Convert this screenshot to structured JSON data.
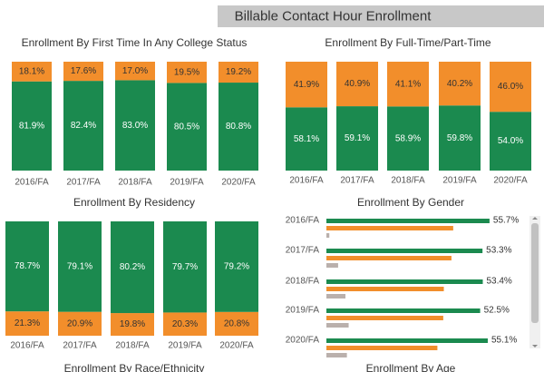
{
  "dashboard": {
    "title": "Billable Contact Hour Enrollment"
  },
  "chart_data": [
    {
      "type": "bar",
      "stacked": true,
      "title": "Enrollment By First Time In Any College Status",
      "categories": [
        "2016/FA",
        "2017/FA",
        "2018/FA",
        "2019/FA",
        "2020/FA"
      ],
      "series": [
        {
          "color": "#1b8a4f",
          "values": [
            81.9,
            82.4,
            83.0,
            80.5,
            80.8
          ],
          "value_labels": [
            "81.9%",
            "82.4%",
            "83.0%",
            "80.5%",
            "80.8%"
          ]
        },
        {
          "color": "#f28e2b",
          "values": [
            18.1,
            17.6,
            17.0,
            19.5,
            19.2
          ],
          "value_labels": [
            "18.1%",
            "17.6%",
            "17.0%",
            "19.5%",
            "19.2%"
          ]
        }
      ]
    },
    {
      "type": "bar",
      "stacked": true,
      "title": "Enrollment By Full-Time/Part-Time",
      "categories": [
        "2016/FA",
        "2017/FA",
        "2018/FA",
        "2019/FA",
        "2020/FA"
      ],
      "series": [
        {
          "color": "#1b8a4f",
          "values": [
            58.1,
            59.1,
            58.9,
            59.8,
            54.0
          ],
          "value_labels": [
            "58.1%",
            "59.1%",
            "58.9%",
            "59.8%",
            "54.0%"
          ]
        },
        {
          "color": "#f28e2b",
          "values": [
            41.9,
            40.9,
            41.1,
            40.2,
            46.0
          ],
          "value_labels": [
            "41.9%",
            "40.9%",
            "41.1%",
            "40.2%",
            "46.0%"
          ]
        }
      ]
    },
    {
      "type": "bar",
      "stacked": true,
      "title": "Enrollment By Residency",
      "categories": [
        "2016/FA",
        "2017/FA",
        "2018/FA",
        "2019/FA",
        "2020/FA"
      ],
      "series": [
        {
          "color": "#f28e2b",
          "values": [
            21.3,
            20.9,
            19.8,
            20.3,
            20.8
          ],
          "value_labels": [
            "21.3%",
            "20.9%",
            "19.8%",
            "20.3%",
            "20.8%"
          ]
        },
        {
          "color": "#1b8a4f",
          "values": [
            78.7,
            79.1,
            80.2,
            79.7,
            79.2
          ],
          "value_labels": [
            "78.7%",
            "79.1%",
            "80.2%",
            "79.7%",
            "79.2%"
          ]
        }
      ]
    },
    {
      "type": "bar",
      "orientation": "horizontal",
      "title": "Enrollment By Gender",
      "categories": [
        "2016/FA",
        "2017/FA",
        "2018/FA",
        "2019/FA",
        "2020/FA"
      ],
      "series": [
        {
          "color": "#1b8a4f",
          "values": [
            55.7,
            53.3,
            53.4,
            52.5,
            55.1
          ],
          "value_labels": [
            "55.7%",
            "53.3%",
            "53.4%",
            "52.5%",
            "55.1%"
          ]
        },
        {
          "color": "#f28e2b",
          "values": [
            43.3,
            42.7,
            40.1,
            39.9,
            37.9
          ]
        },
        {
          "color": "#bab0ac",
          "values": [
            1.0,
            4.0,
            6.5,
            7.6,
            7.0
          ]
        }
      ]
    },
    {
      "title": "Enrollment By Race/Ethnicity"
    },
    {
      "title": "Enrollment By Age"
    }
  ]
}
